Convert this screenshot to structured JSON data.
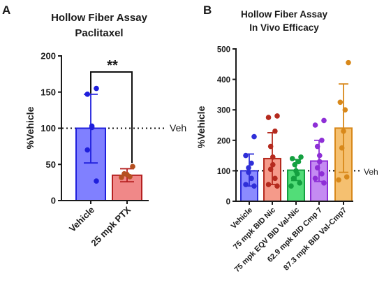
{
  "chart_data": [
    {
      "panel": "A",
      "type": "bar",
      "title": [
        "Hollow  Fiber Assay",
        "Paclitaxel"
      ],
      "ylabel": "%Vehicle",
      "xlabel": "",
      "ylim": [
        0,
        200
      ],
      "yticks": [
        "0",
        "50",
        "100",
        "150",
        "200"
      ],
      "categories": [
        "Vehicle",
        "25 mpk PTX"
      ],
      "values": [
        100,
        35
      ],
      "error_low": [
        52,
        26
      ],
      "error_high": [
        147,
        44
      ],
      "points": [
        [
          155,
          147,
          103,
          101,
          70,
          27
        ],
        [
          47,
          37,
          36,
          33,
          32
        ]
      ],
      "reference_line": {
        "value": 100,
        "label": "Veh"
      },
      "significance": "**",
      "grid": false
    },
    {
      "panel": "B",
      "type": "bar",
      "title": [
        "Hollow Fiber Assay",
        "In Vivo Efficacy"
      ],
      "ylabel": "%Vehicle",
      "xlabel": "",
      "ylim": [
        0,
        500
      ],
      "yticks": [
        "0",
        "100",
        "200",
        "300",
        "400",
        "500"
      ],
      "categories": [
        "Vehicle",
        "75 mpk BID Nic",
        "75 mpk EQV BID Val-Nic",
        "62.9 mpk BID Cmp 7",
        "87.3 mpk BID Val-Cmp7"
      ],
      "values": [
        100,
        140,
        102,
        132,
        240
      ],
      "error_low": [
        50,
        55,
        68,
        65,
        95
      ],
      "error_high": [
        155,
        225,
        137,
        200,
        385
      ],
      "points": [
        [
          212,
          150,
          125,
          110,
          95,
          75,
          55,
          50
        ],
        [
          280,
          275,
          230,
          180,
          145,
          120,
          105,
          75,
          55,
          50
        ],
        [
          145,
          140,
          130,
          120,
          100,
          90,
          75,
          60,
          50
        ],
        [
          265,
          250,
          200,
          180,
          150,
          130,
          110,
          90,
          75,
          60
        ],
        [
          455,
          325,
          300,
          230,
          175,
          80,
          70
        ]
      ],
      "reference_line": {
        "value": 100,
        "label": "Veh"
      },
      "grid": false
    }
  ],
  "colors": {
    "A": [
      {
        "fill": "#8080ff",
        "edge": "#1f1fdc",
        "point": "#1f1fdc"
      },
      {
        "fill": "#f08888",
        "edge": "#b52020",
        "point": "#b55020"
      }
    ],
    "B": [
      {
        "fill": "#8b8bff",
        "edge": "#2f2fd8",
        "point": "#2f2fd8"
      },
      {
        "fill": "#f59a8a",
        "edge": "#b52a1e",
        "point": "#b52a1e"
      },
      {
        "fill": "#52dd78",
        "edge": "#14a040",
        "point": "#14a040"
      },
      {
        "fill": "#c48bf2",
        "edge": "#8e2fd6",
        "point": "#8e2fd6"
      },
      {
        "fill": "#f5c070",
        "edge": "#d8881a",
        "point": "#d8881a"
      }
    ],
    "axis": "#1a1a1a"
  }
}
